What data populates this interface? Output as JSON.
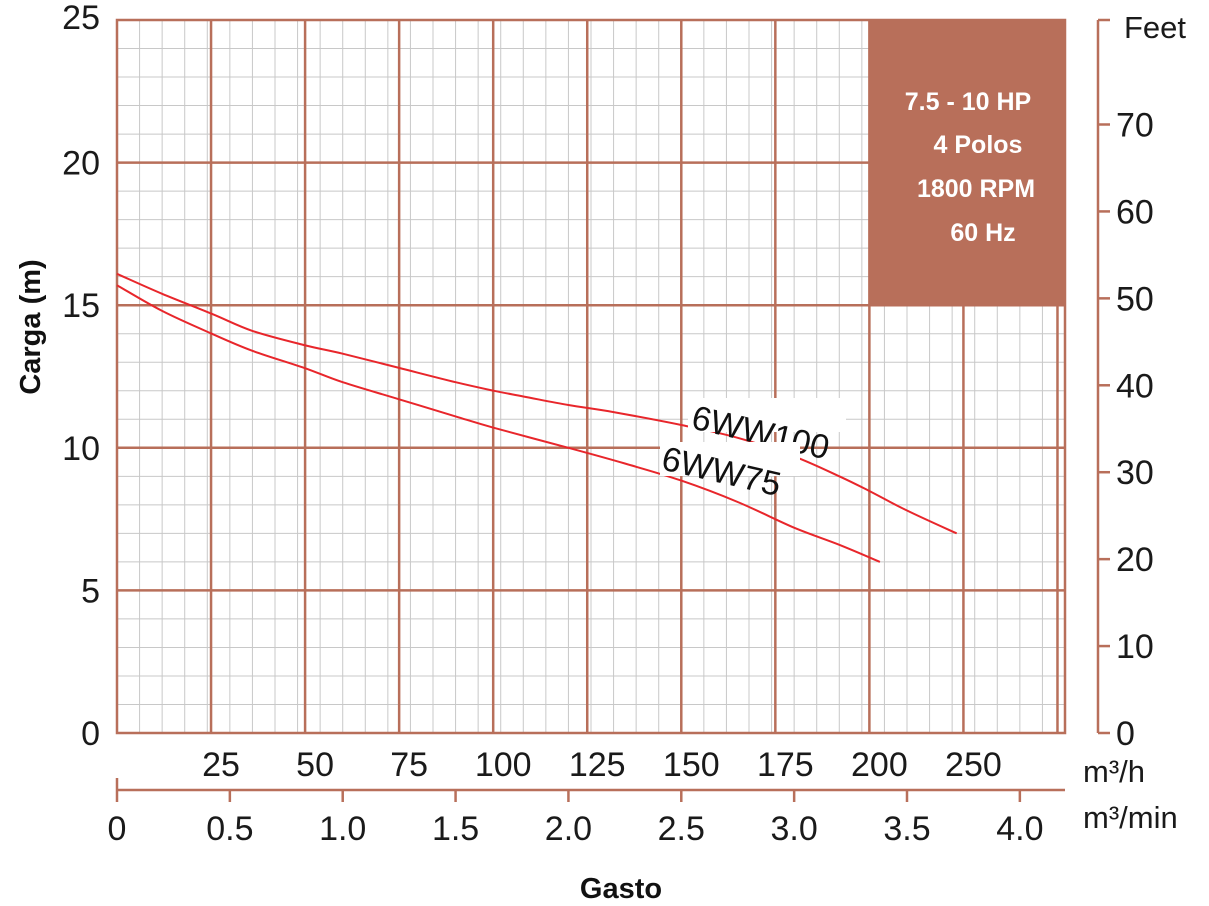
{
  "chart_data": {
    "type": "line",
    "ylabel": "Carga (m)",
    "xlabel": "Gasto",
    "ylim": [
      0,
      25
    ],
    "xlim": [
      0,
      4.2
    ],
    "y_ticks": [
      "0",
      "5",
      "10",
      "15",
      "20",
      "25"
    ],
    "y2_ticks": [
      "0",
      "10",
      "20",
      "30",
      "40",
      "50",
      "60",
      "70"
    ],
    "y2_unit": "Feet",
    "x_ticks_min": [
      "0",
      "0.5",
      "1.0",
      "1.5",
      "2.0",
      "2.5",
      "3.0",
      "3.5",
      "4.0"
    ],
    "x_unit_min": "m³/min",
    "x_ticks_h": [
      "25",
      "50",
      "75",
      "100",
      "125",
      "150",
      "175",
      "200",
      "250"
    ],
    "x_unit_h": "m³/h",
    "grid": true,
    "spec_box": [
      "7.5 - 10 HP",
      "4 Polos",
      "1800 RPM",
      "60 Hz"
    ],
    "series": [
      {
        "name": "6WW100",
        "x": [
          0.0,
          0.2,
          0.42,
          0.6,
          0.83,
          1.0,
          1.25,
          1.5,
          1.67,
          1.8,
          2.0,
          2.2,
          2.5,
          2.75,
          3.0,
          3.2,
          3.33,
          3.5,
          3.72
        ],
        "y": [
          16.1,
          15.4,
          14.7,
          14.1,
          13.6,
          13.3,
          12.8,
          12.3,
          12.0,
          11.8,
          11.5,
          11.25,
          10.8,
          10.35,
          9.7,
          9.0,
          8.5,
          7.8,
          7.0
        ]
      },
      {
        "name": "6WW75",
        "x": [
          0.0,
          0.2,
          0.42,
          0.6,
          0.83,
          1.0,
          1.25,
          1.5,
          1.67,
          2.0,
          2.25,
          2.5,
          2.75,
          3.0,
          3.2,
          3.38
        ],
        "y": [
          15.7,
          14.8,
          14.0,
          13.4,
          12.8,
          12.3,
          11.7,
          11.1,
          10.7,
          10.0,
          9.45,
          8.85,
          8.1,
          7.2,
          6.6,
          6.0
        ]
      }
    ]
  },
  "colors": {
    "grid_major": "#b86f5a",
    "grid_minor": "#c8c8c8",
    "spec_box": "#b86f5a",
    "curve": "#e8262b"
  }
}
